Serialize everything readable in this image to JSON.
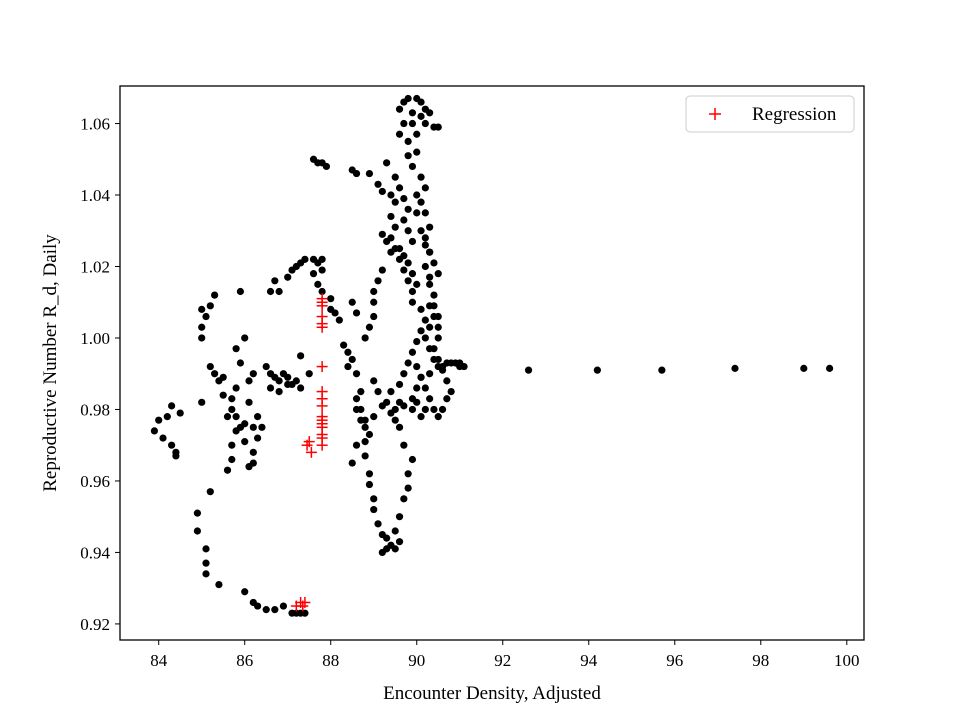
{
  "chart_data": {
    "type": "scatter",
    "title": "",
    "xlabel": "Encounter Density, Adjusted",
    "ylabel": "Reproductive Number R_d, Daily",
    "xlim": [
      83.1,
      100.4
    ],
    "ylim": [
      0.9155,
      1.0705
    ],
    "xticks": [
      84,
      86,
      88,
      90,
      92,
      94,
      96,
      98,
      100
    ],
    "yticks": [
      0.92,
      0.94,
      0.96,
      0.98,
      1.0,
      1.02,
      1.04,
      1.06
    ],
    "xtick_labels": [
      "84",
      "86",
      "88",
      "90",
      "92",
      "94",
      "96",
      "98",
      "100"
    ],
    "ytick_labels": [
      "0.92",
      "0.94",
      "0.96",
      "0.98",
      "1.00",
      "1.02",
      "1.04",
      "1.06"
    ],
    "grid": false,
    "legend": {
      "position": "top-right",
      "entries": [
        "Regression"
      ]
    },
    "series": [
      {
        "marker": "circle",
        "color": "#000000",
        "points": [
          [
            83.9,
            0.974
          ],
          [
            84.0,
            0.977
          ],
          [
            84.1,
            0.972
          ],
          [
            84.2,
            0.978
          ],
          [
            84.3,
            0.97
          ],
          [
            84.3,
            0.981
          ],
          [
            84.4,
            0.968
          ],
          [
            84.4,
            0.967
          ],
          [
            84.5,
            0.979
          ],
          [
            84.9,
            0.951
          ],
          [
            84.9,
            0.946
          ],
          [
            85.0,
            0.982
          ],
          [
            85.1,
            0.941
          ],
          [
            85.1,
            0.937
          ],
          [
            85.1,
            0.934
          ],
          [
            85.2,
            0.957
          ],
          [
            85.0,
            1.008
          ],
          [
            85.1,
            1.006
          ],
          [
            85.0,
            1.003
          ],
          [
            85.0,
            1.0
          ],
          [
            85.2,
            1.009
          ],
          [
            85.3,
            1.012
          ],
          [
            85.2,
            0.992
          ],
          [
            85.3,
            0.99
          ],
          [
            85.4,
            0.988
          ],
          [
            85.5,
            0.984
          ],
          [
            85.5,
            0.989
          ],
          [
            85.4,
            0.931
          ],
          [
            85.6,
            0.963
          ],
          [
            85.7,
            0.966
          ],
          [
            85.7,
            0.97
          ],
          [
            85.8,
            0.974
          ],
          [
            85.6,
            0.978
          ],
          [
            85.7,
            0.983
          ],
          [
            85.8,
            0.986
          ],
          [
            85.8,
            0.997
          ],
          [
            85.9,
            0.993
          ],
          [
            85.7,
            0.98
          ],
          [
            85.8,
            0.978
          ],
          [
            85.9,
            0.975
          ],
          [
            85.9,
            1.013
          ],
          [
            86.0,
            0.929
          ],
          [
            86.0,
            0.971
          ],
          [
            86.0,
            0.976
          ],
          [
            86.0,
            1.0
          ],
          [
            86.1,
            0.964
          ],
          [
            86.1,
            0.982
          ],
          [
            86.2,
            0.965
          ],
          [
            86.2,
            0.968
          ],
          [
            86.2,
            0.975
          ],
          [
            86.3,
            0.978
          ],
          [
            86.3,
            0.972
          ],
          [
            86.4,
            0.975
          ],
          [
            86.1,
            0.988
          ],
          [
            86.2,
            0.99
          ],
          [
            86.2,
            0.926
          ],
          [
            86.3,
            0.925
          ],
          [
            86.5,
            0.924
          ],
          [
            86.7,
            0.924
          ],
          [
            86.9,
            0.925
          ],
          [
            86.5,
            0.992
          ],
          [
            86.6,
            0.99
          ],
          [
            86.7,
            0.989
          ],
          [
            86.8,
            0.988
          ],
          [
            86.9,
            0.99
          ],
          [
            87.0,
            0.989
          ],
          [
            87.1,
            0.987
          ],
          [
            87.2,
            0.988
          ],
          [
            87.3,
            0.986
          ],
          [
            87.3,
            0.995
          ],
          [
            86.6,
            1.013
          ],
          [
            86.7,
            1.016
          ],
          [
            86.8,
            1.013
          ],
          [
            87.0,
            1.017
          ],
          [
            87.1,
            1.019
          ],
          [
            87.2,
            1.02
          ],
          [
            87.3,
            1.021
          ],
          [
            87.4,
            1.022
          ],
          [
            87.6,
            1.022
          ],
          [
            87.7,
            1.021
          ],
          [
            87.8,
            1.022
          ],
          [
            87.8,
            1.019
          ],
          [
            87.6,
            1.018
          ],
          [
            87.7,
            1.015
          ],
          [
            87.8,
            1.013
          ],
          [
            88.0,
            1.011
          ],
          [
            88.0,
            1.008
          ],
          [
            86.6,
            0.986
          ],
          [
            86.8,
            0.985
          ],
          [
            87.0,
            0.987
          ],
          [
            87.1,
            0.923
          ],
          [
            87.2,
            0.923
          ],
          [
            87.3,
            0.923
          ],
          [
            87.4,
            0.923
          ],
          [
            87.6,
            1.05
          ],
          [
            87.7,
            1.049
          ],
          [
            87.8,
            1.049
          ],
          [
            87.9,
            1.048
          ],
          [
            87.5,
            0.99
          ],
          [
            88.1,
            1.007
          ],
          [
            88.2,
            1.005
          ],
          [
            88.3,
            0.998
          ],
          [
            88.4,
            0.996
          ],
          [
            88.5,
            0.994
          ],
          [
            88.4,
            0.992
          ],
          [
            88.6,
            0.99
          ],
          [
            88.5,
            1.01
          ],
          [
            88.6,
            1.007
          ],
          [
            88.7,
            0.985
          ],
          [
            88.6,
            0.983
          ],
          [
            88.7,
            0.98
          ],
          [
            88.7,
            0.977
          ],
          [
            88.8,
            0.975
          ],
          [
            88.6,
            0.97
          ],
          [
            88.5,
            0.965
          ],
          [
            88.8,
            0.971
          ],
          [
            88.8,
            0.967
          ],
          [
            88.9,
            0.962
          ],
          [
            88.9,
            0.959
          ],
          [
            89.0,
            0.955
          ],
          [
            89.0,
            0.952
          ],
          [
            89.1,
            0.948
          ],
          [
            89.2,
            0.945
          ],
          [
            89.3,
            0.944
          ],
          [
            89.2,
            0.94
          ],
          [
            89.3,
            0.941
          ],
          [
            89.4,
            0.942
          ],
          [
            89.5,
            0.941
          ],
          [
            89.6,
            0.943
          ],
          [
            89.5,
            0.946
          ],
          [
            89.6,
            0.95
          ],
          [
            89.7,
            0.955
          ],
          [
            89.8,
            0.958
          ],
          [
            89.8,
            0.962
          ],
          [
            89.9,
            0.966
          ],
          [
            89.7,
            0.97
          ],
          [
            89.6,
            0.975
          ],
          [
            89.5,
            0.98
          ],
          [
            89.6,
            0.982
          ],
          [
            89.7,
            0.981
          ],
          [
            88.8,
            1.0
          ],
          [
            88.9,
            1.003
          ],
          [
            89.0,
            1.006
          ],
          [
            89.0,
            1.01
          ],
          [
            89.0,
            1.013
          ],
          [
            89.1,
            1.016
          ],
          [
            89.2,
            1.019
          ],
          [
            89.0,
            0.988
          ],
          [
            89.1,
            0.985
          ],
          [
            88.6,
            0.98
          ],
          [
            88.8,
            0.977
          ],
          [
            88.9,
            0.973
          ],
          [
            89.0,
            0.978
          ],
          [
            89.2,
            0.981
          ],
          [
            88.5,
            1.047
          ],
          [
            88.6,
            1.046
          ],
          [
            88.9,
            1.046
          ],
          [
            89.1,
            1.043
          ],
          [
            89.2,
            1.041
          ],
          [
            89.4,
            1.04
          ],
          [
            89.5,
            1.038
          ],
          [
            89.4,
            1.034
          ],
          [
            89.5,
            1.031
          ],
          [
            89.4,
            1.028
          ],
          [
            89.5,
            1.025
          ],
          [
            89.6,
            1.022
          ],
          [
            89.7,
            1.019
          ],
          [
            89.8,
            1.016
          ],
          [
            89.9,
            1.013
          ],
          [
            89.9,
            1.01
          ],
          [
            89.3,
            1.049
          ],
          [
            89.5,
            1.045
          ],
          [
            89.6,
            1.042
          ],
          [
            89.7,
            1.039
          ],
          [
            89.8,
            1.036
          ],
          [
            89.7,
            1.033
          ],
          [
            89.8,
            1.03
          ],
          [
            89.9,
            1.027
          ],
          [
            89.2,
            1.029
          ],
          [
            89.3,
            1.027
          ],
          [
            89.4,
            1.024
          ],
          [
            89.6,
            1.025
          ],
          [
            89.7,
            1.023
          ],
          [
            89.8,
            1.021
          ],
          [
            89.9,
            1.018
          ],
          [
            90.0,
            1.015
          ],
          [
            89.6,
            1.057
          ],
          [
            89.7,
            1.06
          ],
          [
            89.6,
            1.064
          ],
          [
            89.7,
            1.066
          ],
          [
            89.8,
            1.067
          ],
          [
            89.9,
            1.063
          ],
          [
            89.9,
            1.06
          ],
          [
            89.8,
            1.055
          ],
          [
            89.8,
            1.051
          ],
          [
            89.9,
            1.048
          ],
          [
            90.0,
            1.052
          ],
          [
            90.0,
            1.057
          ],
          [
            90.1,
            1.062
          ],
          [
            90.0,
            1.067
          ],
          [
            90.1,
            1.066
          ],
          [
            90.2,
            1.064
          ],
          [
            90.2,
            1.06
          ],
          [
            90.3,
            1.063
          ],
          [
            90.4,
            1.059
          ],
          [
            90.5,
            1.059
          ],
          [
            90.1,
            1.045
          ],
          [
            90.2,
            1.042
          ],
          [
            90.1,
            1.038
          ],
          [
            90.2,
            1.035
          ],
          [
            90.3,
            1.031
          ],
          [
            90.2,
            1.028
          ],
          [
            90.3,
            1.024
          ],
          [
            90.4,
            1.021
          ],
          [
            90.5,
            1.018
          ],
          [
            90.3,
            1.015
          ],
          [
            90.4,
            1.012
          ],
          [
            90.3,
            1.009
          ],
          [
            90.4,
            1.006
          ],
          [
            90.3,
            1.003
          ],
          [
            90.2,
            1.0
          ],
          [
            90.3,
            0.997
          ],
          [
            90.4,
            0.994
          ],
          [
            90.5,
            0.992
          ],
          [
            90.0,
            1.04
          ],
          [
            90.0,
            1.035
          ],
          [
            90.1,
            1.03
          ],
          [
            90.2,
            1.026
          ],
          [
            90.3,
            1.024
          ],
          [
            90.2,
            1.02
          ],
          [
            90.3,
            1.017
          ],
          [
            90.1,
            1.008
          ],
          [
            90.2,
            1.005
          ],
          [
            90.1,
            1.002
          ],
          [
            90.0,
            0.999
          ],
          [
            89.9,
            0.996
          ],
          [
            89.8,
            0.993
          ],
          [
            89.7,
            0.99
          ],
          [
            89.6,
            0.987
          ],
          [
            89.4,
            0.985
          ],
          [
            89.3,
            0.982
          ],
          [
            89.4,
            0.979
          ],
          [
            89.5,
            0.977
          ],
          [
            90.0,
            0.992
          ],
          [
            90.1,
            0.989
          ],
          [
            90.2,
            0.986
          ],
          [
            90.3,
            0.983
          ],
          [
            90.2,
            0.98
          ],
          [
            90.1,
            0.978
          ],
          [
            90.0,
            0.982
          ],
          [
            90.4,
            0.98
          ],
          [
            90.5,
            0.978
          ],
          [
            90.6,
            0.98
          ],
          [
            90.7,
            0.983
          ],
          [
            90.8,
            0.985
          ],
          [
            90.7,
            0.988
          ],
          [
            90.6,
            0.991
          ],
          [
            90.5,
            0.994
          ],
          [
            90.4,
            0.997
          ],
          [
            90.5,
            1.0
          ],
          [
            90.5,
            1.003
          ],
          [
            90.5,
            1.006
          ],
          [
            90.4,
            1.009
          ],
          [
            90.6,
            0.992
          ],
          [
            90.7,
            0.993
          ],
          [
            90.8,
            0.993
          ],
          [
            90.9,
            0.993
          ],
          [
            91.0,
            0.993
          ],
          [
            91.1,
            0.992
          ],
          [
            91.0,
            0.992
          ],
          [
            90.3,
            0.99
          ],
          [
            90.1,
            0.989
          ],
          [
            90.0,
            0.986
          ],
          [
            89.9,
            0.983
          ],
          [
            89.9,
            0.98
          ],
          [
            92.6,
            0.991
          ],
          [
            94.2,
            0.991
          ],
          [
            95.7,
            0.991
          ],
          [
            97.4,
            0.9915
          ],
          [
            99.0,
            0.9915
          ],
          [
            99.6,
            0.9915
          ]
        ]
      },
      {
        "name": "Regression",
        "marker": "plus",
        "color": "#ff0000",
        "points": [
          [
            87.2,
            0.925
          ],
          [
            87.3,
            0.926
          ],
          [
            87.4,
            0.926
          ],
          [
            87.35,
            0.925
          ],
          [
            87.45,
            0.97
          ],
          [
            87.55,
            0.968
          ],
          [
            87.5,
            0.971
          ],
          [
            87.8,
            0.97
          ],
          [
            87.8,
            0.972
          ],
          [
            87.8,
            0.973
          ],
          [
            87.8,
            0.975
          ],
          [
            87.8,
            0.976
          ],
          [
            87.8,
            0.977
          ],
          [
            87.8,
            0.978
          ],
          [
            87.8,
            0.981
          ],
          [
            87.8,
            0.983
          ],
          [
            87.8,
            0.985
          ],
          [
            87.8,
            0.992
          ],
          [
            87.8,
            1.003
          ],
          [
            87.8,
            1.004
          ],
          [
            87.8,
            1.006
          ],
          [
            87.8,
            1.009
          ],
          [
            87.8,
            1.01
          ],
          [
            87.8,
            1.011
          ]
        ]
      }
    ]
  }
}
